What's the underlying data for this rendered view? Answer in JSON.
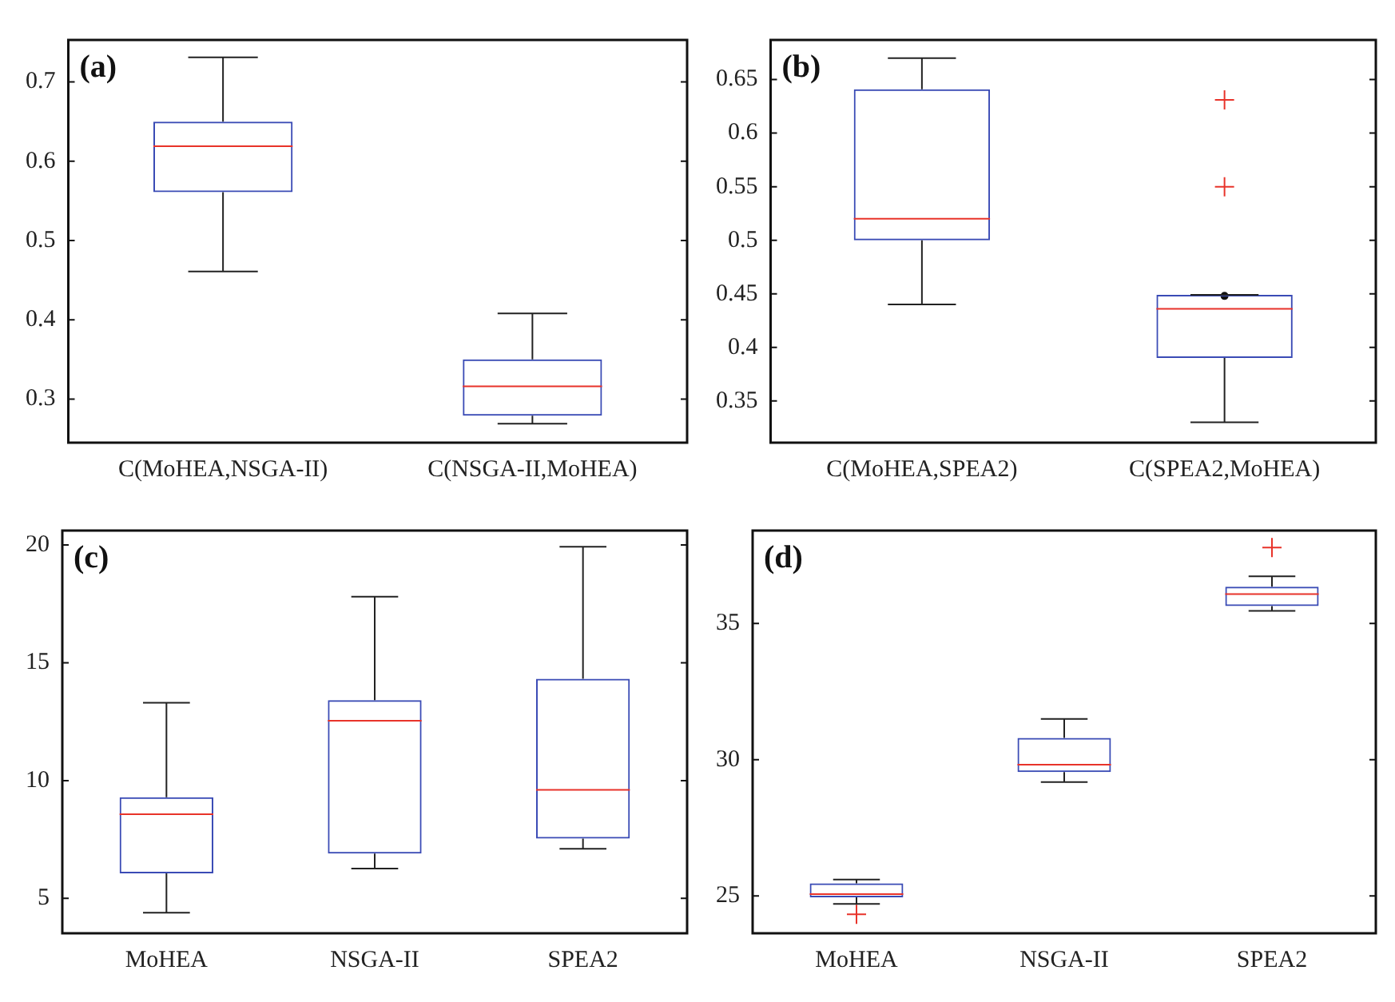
{
  "chart_data": [
    {
      "type": "box",
      "title": "(a)",
      "categories": [
        "C(MoHEA,NSGA-II)",
        "C(NSGA-II,MoHEA)"
      ],
      "ylim": [
        0.245,
        0.753
      ],
      "yticks": [
        0.3,
        0.4,
        0.5,
        0.6,
        0.7
      ],
      "grid": false,
      "series": [
        {
          "color": "#3a4bb5",
          "boxes": [
            {
              "low": 0.461,
              "q1": 0.561,
              "median": 0.619,
              "q3": 0.65,
              "high": 0.731
            },
            {
              "low": 0.269,
              "q1": 0.279,
              "median": 0.316,
              "q3": 0.35,
              "high": 0.408
            }
          ]
        }
      ]
    },
    {
      "type": "box",
      "title": "(b)",
      "categories": [
        "C(MoHEA,SPEA2)",
        "C(SPEA2,MoHEA)"
      ],
      "ylim": [
        0.311,
        0.687
      ],
      "yticks": [
        0.35,
        0.4,
        0.45,
        0.5,
        0.55,
        0.6,
        0.65
      ],
      "grid": false,
      "series": [
        {
          "color": "#3a4bb5",
          "boxes": [
            {
              "low": 0.44,
              "q1": 0.5,
              "median": 0.52,
              "q3": 0.641,
              "high": 0.67
            },
            {
              "low": 0.33,
              "q1": 0.39,
              "median": 0.436,
              "q3": 0.449,
              "high": 0.449,
              "mean": 0.448,
              "outliers": [
                0.55,
                0.631
              ]
            }
          ]
        }
      ]
    },
    {
      "type": "box",
      "title": "(c)",
      "categories": [
        "MoHEA",
        "NSGA-II",
        "SPEA2"
      ],
      "ylim": [
        3.52,
        20.61
      ],
      "yticks": [
        5,
        10,
        15,
        20
      ],
      "grid": false,
      "series": [
        {
          "color": "#3a4bb5",
          "boxes": [
            {
              "low": 4.39,
              "q1": 6.06,
              "median": 8.57,
              "q3": 9.29,
              "high": 13.3
            },
            {
              "low": 6.27,
              "q1": 6.9,
              "median": 12.54,
              "q3": 13.41,
              "high": 17.8
            },
            {
              "low": 7.11,
              "q1": 7.54,
              "median": 9.61,
              "q3": 14.32,
              "high": 19.92
            }
          ]
        }
      ]
    },
    {
      "type": "box",
      "title": "(d)",
      "categories": [
        "MoHEA",
        "NSGA-II",
        "SPEA2"
      ],
      "ylim": [
        23.63,
        38.41
      ],
      "yticks": [
        25,
        30,
        35
      ],
      "grid": false,
      "series": [
        {
          "color": "#3a4bb5",
          "boxes": [
            {
              "low": 24.71,
              "q1": 24.95,
              "median": 25.07,
              "q3": 25.46,
              "high": 25.6,
              "outliers": [
                24.33
              ]
            },
            {
              "low": 29.18,
              "q1": 29.55,
              "median": 29.82,
              "q3": 30.8,
              "high": 31.5
            },
            {
              "low": 35.46,
              "q1": 35.64,
              "median": 36.08,
              "q3": 36.35,
              "high": 36.73,
              "outliers": [
                37.79
              ]
            }
          ]
        }
      ]
    }
  ]
}
